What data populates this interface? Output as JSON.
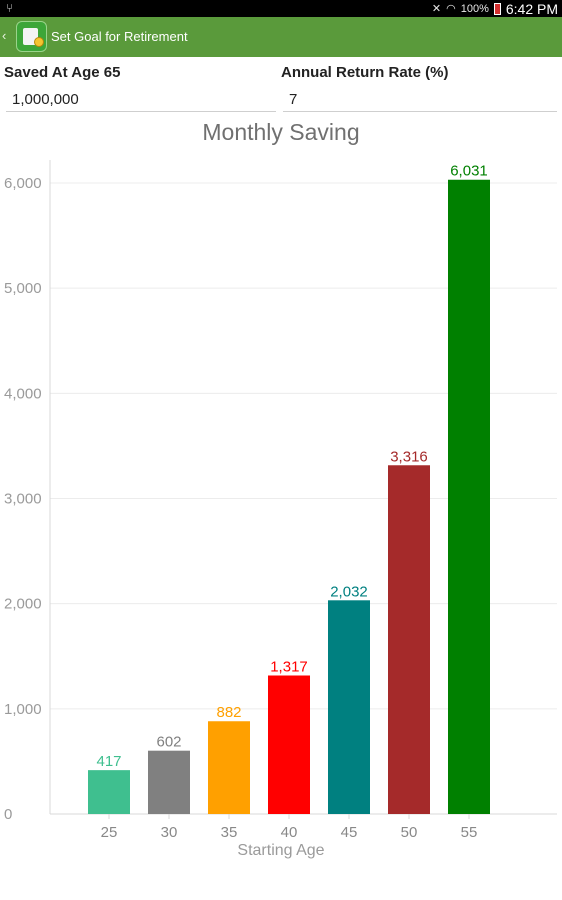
{
  "status_bar": {
    "usb_icon": "usb-icon",
    "battery_pct": "100%",
    "time": "6:42 PM"
  },
  "action_bar": {
    "title": "Set Goal for Retirement",
    "color": "#5a9a3b"
  },
  "form": {
    "saved_label": "Saved At Age 65",
    "saved_value": "1,000,000",
    "rate_label": "Annual Return Rate (%)",
    "rate_value": "7"
  },
  "chart_data": {
    "type": "bar",
    "title": "Monthly Saving",
    "xlabel": "Starting Age",
    "ylabel": "",
    "categories": [
      "25",
      "30",
      "35",
      "40",
      "45",
      "50",
      "55"
    ],
    "values": [
      417,
      602,
      882,
      1317,
      2032,
      3316,
      6031
    ],
    "value_labels": [
      "417",
      "602",
      "882",
      "1,317",
      "2,032",
      "3,316",
      "6,031"
    ],
    "colors": [
      "#3fbf8f",
      "#808080",
      "#ffa000",
      "#ff0000",
      "#008080",
      "#a52a2a",
      "#008000"
    ],
    "ylim": [
      0,
      6000
    ],
    "yticks": [
      0,
      1000,
      2000,
      3000,
      4000,
      5000,
      6000
    ],
    "ytick_labels": [
      "0",
      "1,000",
      "2,000",
      "3,000",
      "4,000",
      "5,000",
      "6,000"
    ],
    "grid": true,
    "legend": false
  }
}
